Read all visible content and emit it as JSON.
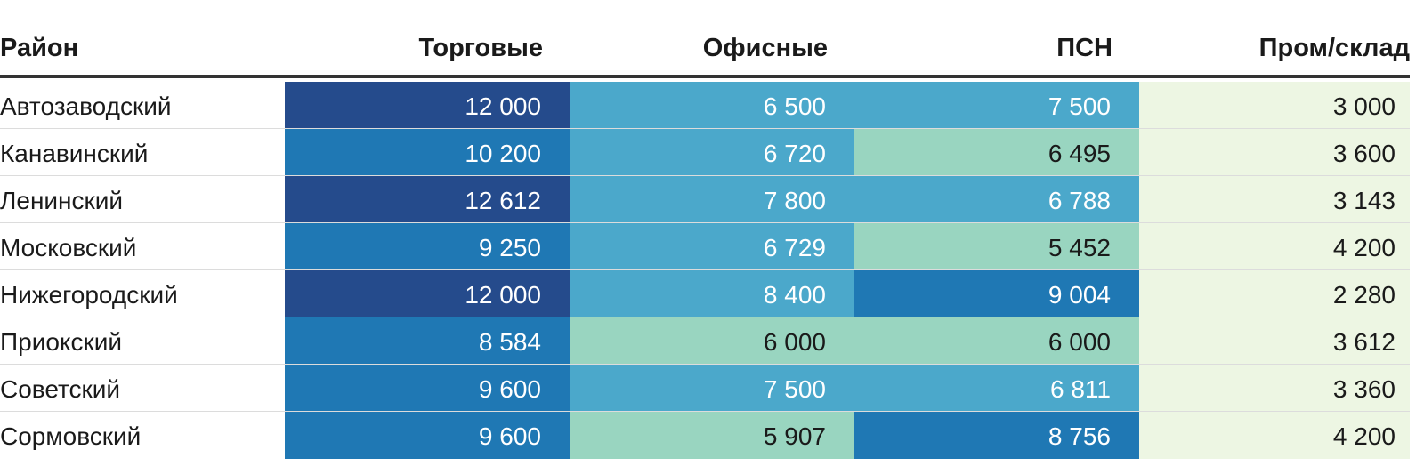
{
  "chart_data": {
    "type": "table",
    "columns": [
      "Район",
      "Торговые",
      "Офисные",
      "ПСН",
      "Пром/склад"
    ],
    "rows": [
      {
        "district": "Автозаводский",
        "values": [
          "12 000",
          "6 500",
          "7 500",
          "3 000"
        ],
        "raw": [
          12000,
          6500,
          7500,
          3000
        ]
      },
      {
        "district": "Канавинский",
        "values": [
          "10 200",
          "6 720",
          "6 495",
          "3 600"
        ],
        "raw": [
          10200,
          6720,
          6495,
          3600
        ]
      },
      {
        "district": "Ленинский",
        "values": [
          "12 612",
          "7 800",
          "6 788",
          "3 143"
        ],
        "raw": [
          12612,
          7800,
          6788,
          3143
        ]
      },
      {
        "district": "Московский",
        "values": [
          "9 250",
          "6 729",
          "5 452",
          "4 200"
        ],
        "raw": [
          9250,
          6729,
          5452,
          4200
        ]
      },
      {
        "district": "Нижегородский",
        "values": [
          "12 000",
          "8 400",
          "9 004",
          "2 280"
        ],
        "raw": [
          12000,
          8400,
          9004,
          2280
        ]
      },
      {
        "district": "Приокский",
        "values": [
          "8 584",
          "6 000",
          "6 000",
          "3 612"
        ],
        "raw": [
          8584,
          6000,
          6000,
          3612
        ]
      },
      {
        "district": "Советский",
        "values": [
          "9 600",
          "7 500",
          "6 811",
          "3 360"
        ],
        "raw": [
          9600,
          7500,
          6811,
          3360
        ]
      },
      {
        "district": "Сормовский",
        "values": [
          "9 600",
          "5 907",
          "8 756",
          "4 200"
        ],
        "raw": [
          9600,
          5907,
          8756,
          4200
        ]
      }
    ],
    "color_scale": {
      "bins": [
        {
          "min": 0,
          "max": 4999,
          "bg": "#edf6e3",
          "fg": "#1a1a1a"
        },
        {
          "min": 5000,
          "max": 6499,
          "bg": "#99d5c0",
          "fg": "#1a1a1a"
        },
        {
          "min": 6500,
          "max": 8499,
          "bg": "#4ba8cb",
          "fg": "#ffffff"
        },
        {
          "min": 8500,
          "max": 11999,
          "bg": "#1f78b4",
          "fg": "#ffffff"
        },
        {
          "min": 12000,
          "max": 100000,
          "bg": "#254b8c",
          "fg": "#ffffff"
        }
      ],
      "overrides": [
        {
          "row": 5,
          "col": 2,
          "bg": "#99d5c0",
          "fg": "#1a1a1a"
        }
      ]
    }
  }
}
